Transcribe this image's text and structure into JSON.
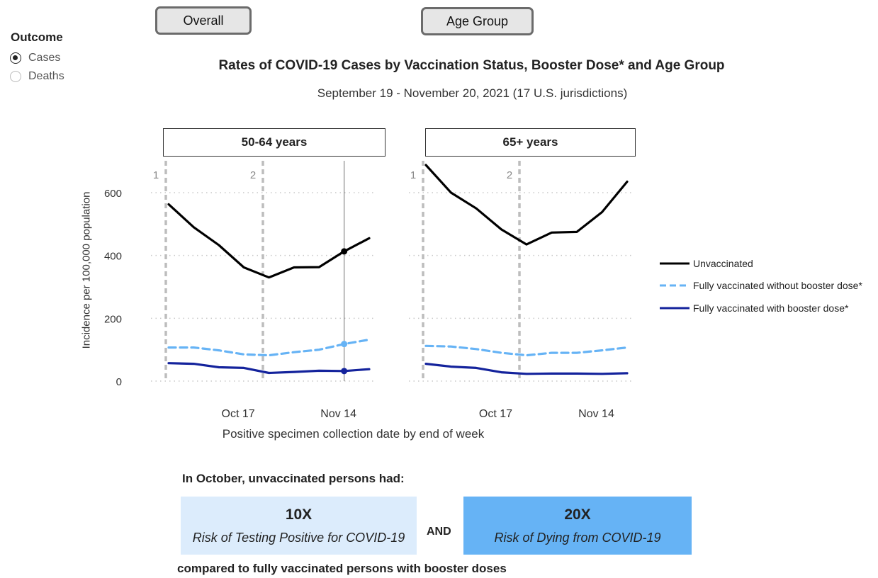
{
  "tabs": {
    "overall": "Overall",
    "age_group": "Age Group"
  },
  "outcome": {
    "title": "Outcome",
    "options": [
      "Cases",
      "Deaths"
    ],
    "selected": "Cases"
  },
  "chart_data": {
    "type": "line",
    "title": "Rates of COVID-19 Cases by Vaccination Status, Booster Dose* and Age Group",
    "subtitle": "September 19 - November 20, 2021 (17 U.S. jurisdictions)",
    "ylabel": "Incidence per 100,000 population",
    "xlabel": "Positive specimen collection date by end of week",
    "ylim": [
      0,
      700
    ],
    "yticks": [
      0,
      200,
      400,
      600
    ],
    "x_count": 9,
    "x_tick_labels": [
      {
        "index": 3,
        "label": "Oct 17"
      },
      {
        "index": 7,
        "label": "Nov 14"
      }
    ],
    "vlines": [
      {
        "index": 0,
        "label": "1"
      },
      {
        "index": 4,
        "label": "2"
      }
    ],
    "hover_index": 7,
    "series_names": [
      "Unvaccinated",
      "Fully vaccinated without booster dose*",
      "Fully vaccinated with booster dose*"
    ],
    "series_colors": [
      "#000000",
      "#66b3f5",
      "#14239c"
    ],
    "panels": [
      {
        "label": "50-64  years",
        "series": [
          {
            "name": "Unvaccinated",
            "values": [
              563,
              490,
              433,
              362,
              330,
              362,
              363,
              413,
              455
            ]
          },
          {
            "name": "Fully vaccinated without booster dose*",
            "values": [
              107,
              107,
              98,
              85,
              82,
              92,
              100,
              118,
              132
            ]
          },
          {
            "name": "Fully vaccinated with booster dose*",
            "values": [
              57,
              55,
              44,
              42,
              26,
              29,
              33,
              32,
              38
            ]
          }
        ]
      },
      {
        "label": "65+ years",
        "series": [
          {
            "name": "Unvaccinated",
            "values": [
              688,
              600,
              550,
              483,
              435,
              473,
              475,
              538,
              635
            ]
          },
          {
            "name": "Fully vaccinated without booster dose*",
            "values": [
              112,
              110,
              102,
              90,
              82,
              90,
              90,
              98,
              107
            ]
          },
          {
            "name": "Fully vaccinated with booster dose*",
            "values": [
              55,
              46,
              42,
              28,
              23,
              24,
              24,
              23,
              25
            ]
          }
        ]
      }
    ]
  },
  "summary": {
    "intro": "In October, unvaccinated persons had:",
    "box1_value": "10X",
    "box1_text": "Risk of Testing Positive for COVID-19",
    "and": "AND",
    "box2_value": "20X",
    "box2_text": "Risk of Dying from COVID-19",
    "footer": "compared to fully vaccinated persons with booster doses",
    "box1_color": "#dcecfc",
    "box2_color": "#66b3f5"
  }
}
